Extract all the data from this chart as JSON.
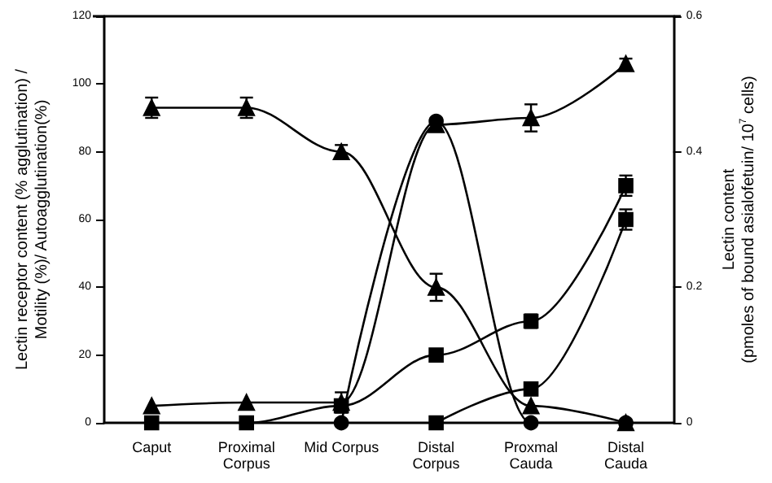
{
  "chart_data": {
    "type": "line",
    "ylabel": "Lectin receptor content (% agglutination) /\nMotility (%)/ Autoagglutination(%)",
    "y2label": "Lectin content\n(pmoles of bound asialofetuin/ 10$^{7}$ cells)",
    "categories": [
      "Caput",
      "Proximal\nCorpus",
      "Mid Corpus",
      "Distal\nCorpus",
      "Proxmal\nCauda",
      "Distal\nCauda"
    ],
    "series": [
      {
        "color": "#000000",
        "marker": "triangle",
        "values": [
          93,
          93,
          80,
          40,
          5,
          0
        ],
        "errors": [
          3,
          3,
          2,
          4,
          null,
          null
        ]
      },
      {
        "color": "#000000",
        "marker": "triangle",
        "values": [
          5,
          6,
          6,
          88,
          90,
          106
        ],
        "errors": [
          null,
          null,
          3,
          1.5,
          4,
          1.5
        ]
      },
      {
        "color": "#000000",
        "marker": "circle",
        "values": [
          null,
          null,
          0,
          89,
          0,
          0
        ]
      },
      {
        "color": "#000000",
        "marker": "square",
        "axis": "y2",
        "values": [
          0,
          0,
          0.025,
          0.1,
          0.15,
          0.35
        ],
        "errors": [
          null,
          null,
          null,
          null,
          0.01,
          0.015
        ]
      },
      {
        "color": "#000000",
        "marker": "square",
        "axis": "y2",
        "values": [
          null,
          null,
          null,
          0,
          0.05,
          0.3
        ],
        "errors": [
          null,
          null,
          null,
          null,
          null,
          0.015
        ]
      }
    ],
    "ylim": [
      0,
      120
    ],
    "yticks": [
      0,
      20,
      40,
      60,
      80,
      100,
      120
    ],
    "y2lim": [
      0,
      0.6
    ],
    "y2ticks": [
      0,
      0.2,
      0.4,
      0.6
    ],
    "grid": false,
    "line_style": "solid"
  }
}
